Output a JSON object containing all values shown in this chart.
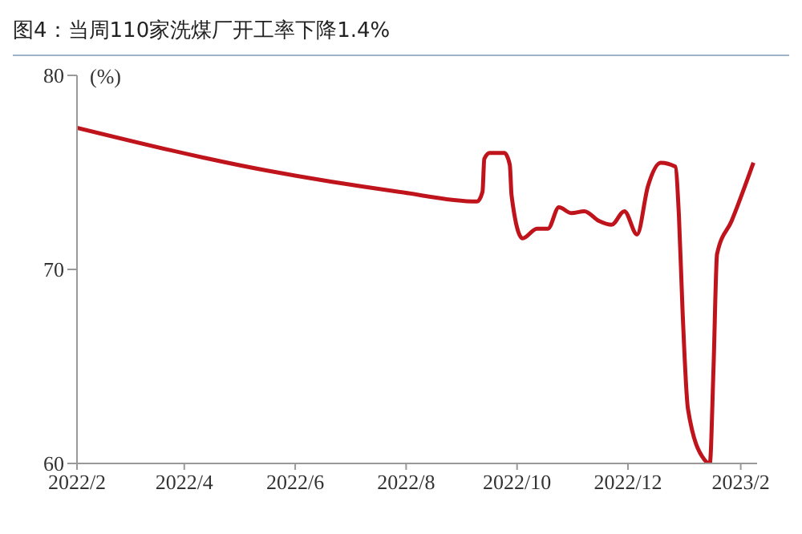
{
  "chart_data": {
    "type": "line",
    "title": "图4：当周110家洗煤厂开工率下降1.4%",
    "ylabel": "(%)",
    "x": [
      "2022-02-01",
      "2022-05-16",
      "2022-07-28",
      "2022-09-09",
      "2022-09-12",
      "2022-09-13",
      "2022-09-16",
      "2022-09-24",
      "2022-09-27",
      "2022-09-28",
      "2022-10-04",
      "2022-10-12",
      "2022-10-18",
      "2022-10-24",
      "2022-10-31",
      "2022-11-07",
      "2022-11-15",
      "2022-11-22",
      "2022-11-29",
      "2022-12-06",
      "2022-12-12",
      "2022-12-19",
      "2022-12-27",
      "2022-12-29",
      "2022-12-31",
      "2023-01-03",
      "2023-01-12",
      "2023-01-15",
      "2023-01-17",
      "2023-01-19",
      "2023-01-27",
      "2023-02-08"
    ],
    "series": [
      {
        "color": "#c0141c",
        "values": [
          77.3,
          75.1,
          74.0,
          73.5,
          74.0,
          75.7,
          76.0,
          76.0,
          75.4,
          73.8,
          71.6,
          72.1,
          72.1,
          73.2,
          72.9,
          73.0,
          72.5,
          72.3,
          73.0,
          71.8,
          74.3,
          75.5,
          75.3,
          72.8,
          67.9,
          62.8,
          60.2,
          60.0,
          64.8,
          70.8,
          72.5,
          75.5
        ]
      }
    ],
    "xlim": [
      "2022-02-01",
      "2023-02-10"
    ],
    "xticks": [
      {
        "value": "2022-02-01",
        "label": "2022/2"
      },
      {
        "value": "2022-04-01",
        "label": "2022/4"
      },
      {
        "value": "2022-06-01",
        "label": "2022/6"
      },
      {
        "value": "2022-08-01",
        "label": "2022/8"
      },
      {
        "value": "2022-10-01",
        "label": "2022/10"
      },
      {
        "value": "2022-12-01",
        "label": "2022/12"
      },
      {
        "value": "2023-02-01",
        "label": "2023/2"
      }
    ],
    "ylim": [
      60,
      80
    ],
    "yticks": [
      60,
      70,
      80
    ],
    "grid": false,
    "legend": false,
    "marker": "none",
    "line_style": "solid"
  }
}
